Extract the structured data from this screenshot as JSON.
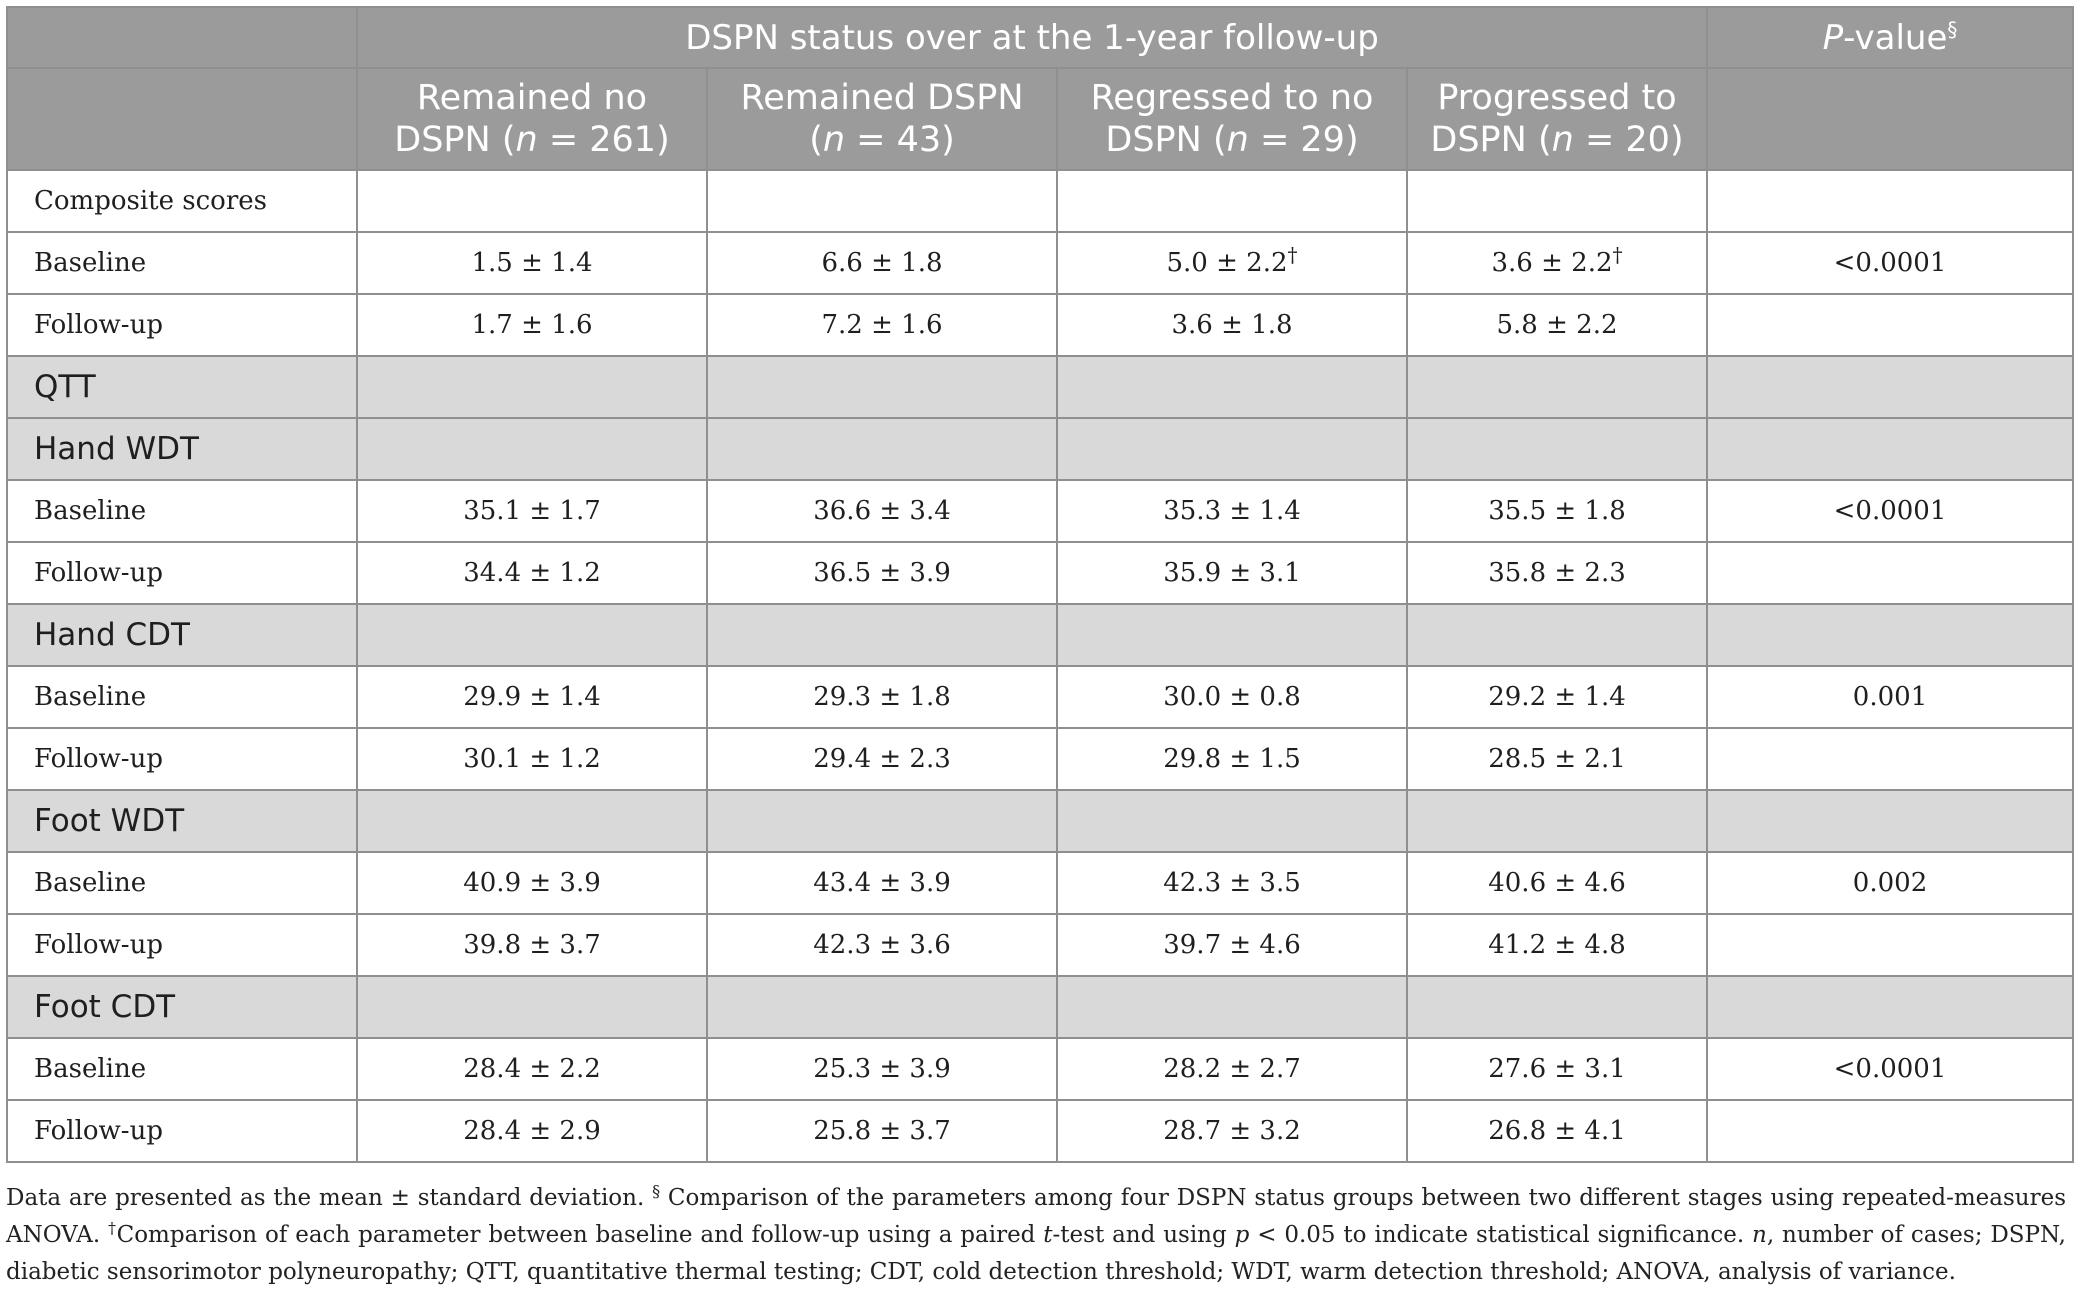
{
  "table": {
    "header": {
      "group_title": "DSPN status over at the 1-year follow-up",
      "pvalue_label": "P",
      "pvalue_suffix": "-value",
      "pvalue_mark": "§",
      "columns": [
        {
          "line1": "Remained no",
          "line2_pre": "DSPN (",
          "n_var": "n",
          "line2_post": " = 261)"
        },
        {
          "line1": "Remained DSPN",
          "line2_pre": "(",
          "n_var": "n",
          "line2_post": " = 43)"
        },
        {
          "line1": "Regressed to no",
          "line2_pre": "DSPN (",
          "n_var": "n",
          "line2_post": " = 29)"
        },
        {
          "line1": "Progressed to",
          "line2_pre": "DSPN (",
          "n_var": "n",
          "line2_post": " = 20)"
        }
      ]
    },
    "rows": [
      {
        "kind": "sub",
        "label": "Composite scores",
        "values": [
          "",
          "",
          "",
          ""
        ],
        "marks": [
          "",
          "",
          "",
          ""
        ],
        "p": ""
      },
      {
        "kind": "data",
        "label": "Baseline",
        "values": [
          "1.5 ± 1.4",
          "6.6 ± 1.8",
          "5.0 ± 2.2",
          "3.6 ± 2.2"
        ],
        "marks": [
          "",
          "",
          "†",
          "†"
        ],
        "p": "<0.0001"
      },
      {
        "kind": "data",
        "label": "Follow-up",
        "values": [
          "1.7 ± 1.6",
          "7.2 ± 1.6",
          "3.6 ± 1.8",
          "5.8 ± 2.2"
        ],
        "marks": [
          "",
          "",
          "",
          ""
        ],
        "p": ""
      },
      {
        "kind": "section",
        "label": "QTT"
      },
      {
        "kind": "section",
        "label": "Hand WDT"
      },
      {
        "kind": "data",
        "label": "Baseline",
        "values": [
          "35.1 ± 1.7",
          "36.6 ± 3.4",
          "35.3 ± 1.4",
          "35.5 ± 1.8"
        ],
        "marks": [
          "",
          "",
          "",
          ""
        ],
        "p": "<0.0001"
      },
      {
        "kind": "data",
        "label": "Follow-up",
        "values": [
          "34.4 ± 1.2",
          "36.5 ± 3.9",
          "35.9 ± 3.1",
          "35.8 ± 2.3"
        ],
        "marks": [
          "",
          "",
          "",
          ""
        ],
        "p": ""
      },
      {
        "kind": "section",
        "label": "Hand CDT"
      },
      {
        "kind": "data",
        "label": "Baseline",
        "values": [
          "29.9 ± 1.4",
          "29.3 ± 1.8",
          "30.0 ± 0.8",
          "29.2 ± 1.4"
        ],
        "marks": [
          "",
          "",
          "",
          ""
        ],
        "p": "0.001"
      },
      {
        "kind": "data",
        "label": "Follow-up",
        "values": [
          "30.1 ± 1.2",
          "29.4 ± 2.3",
          "29.8 ± 1.5",
          "28.5 ± 2.1"
        ],
        "marks": [
          "",
          "",
          "",
          ""
        ],
        "p": ""
      },
      {
        "kind": "section",
        "label": "Foot WDT"
      },
      {
        "kind": "data",
        "label": "Baseline",
        "values": [
          "40.9 ± 3.9",
          "43.4 ± 3.9",
          "42.3 ± 3.5",
          "40.6 ± 4.6"
        ],
        "marks": [
          "",
          "",
          "",
          ""
        ],
        "p": "0.002"
      },
      {
        "kind": "data",
        "label": "Follow-up",
        "values": [
          "39.8 ± 3.7",
          "42.3 ± 3.6",
          "39.7 ± 4.6",
          "41.2 ± 4.8"
        ],
        "marks": [
          "",
          "",
          "",
          ""
        ],
        "p": ""
      },
      {
        "kind": "section",
        "label": "Foot CDT"
      },
      {
        "kind": "data",
        "label": "Baseline",
        "values": [
          "28.4 ± 2.2",
          "25.3 ± 3.9",
          "28.2 ± 2.7",
          "27.6 ± 3.1"
        ],
        "marks": [
          "",
          "",
          "",
          ""
        ],
        "p": "<0.0001"
      },
      {
        "kind": "data",
        "label": "Follow-up",
        "values": [
          "28.4 ± 2.9",
          "25.8 ± 3.7",
          "28.7 ± 3.2",
          "26.8 ± 4.1"
        ],
        "marks": [
          "",
          "",
          "",
          ""
        ],
        "p": ""
      }
    ]
  },
  "footnote": {
    "segments": [
      {
        "t": "Data are presented as the mean ± standard deviation. ",
        "s": ""
      },
      {
        "t": "§",
        "s": "sup"
      },
      {
        "t": " Comparison of the parameters among four DSPN status groups between two different stages using repeated-measures ANOVA. ",
        "s": ""
      },
      {
        "t": "†",
        "s": "sup"
      },
      {
        "t": "Comparison of each parameter between baseline and follow-up using a paired ",
        "s": ""
      },
      {
        "t": "t",
        "s": "ital"
      },
      {
        "t": "-test and using ",
        "s": ""
      },
      {
        "t": "p",
        "s": "ital"
      },
      {
        "t": " < 0.05 to indicate statistical significance. ",
        "s": ""
      },
      {
        "t": "n",
        "s": "ital"
      },
      {
        "t": ", number of cases; DSPN, diabetic sensorimotor polyneuropathy; QTT, quantitative thermal testing; CDT, cold detection threshold; WDT, warm detection threshold; ANOVA, analysis of variance.",
        "s": ""
      }
    ]
  },
  "colors": {
    "header_bg": "#9b9b9b",
    "section_bg": "#d9d9d9",
    "border": "#8f8f8f"
  }
}
